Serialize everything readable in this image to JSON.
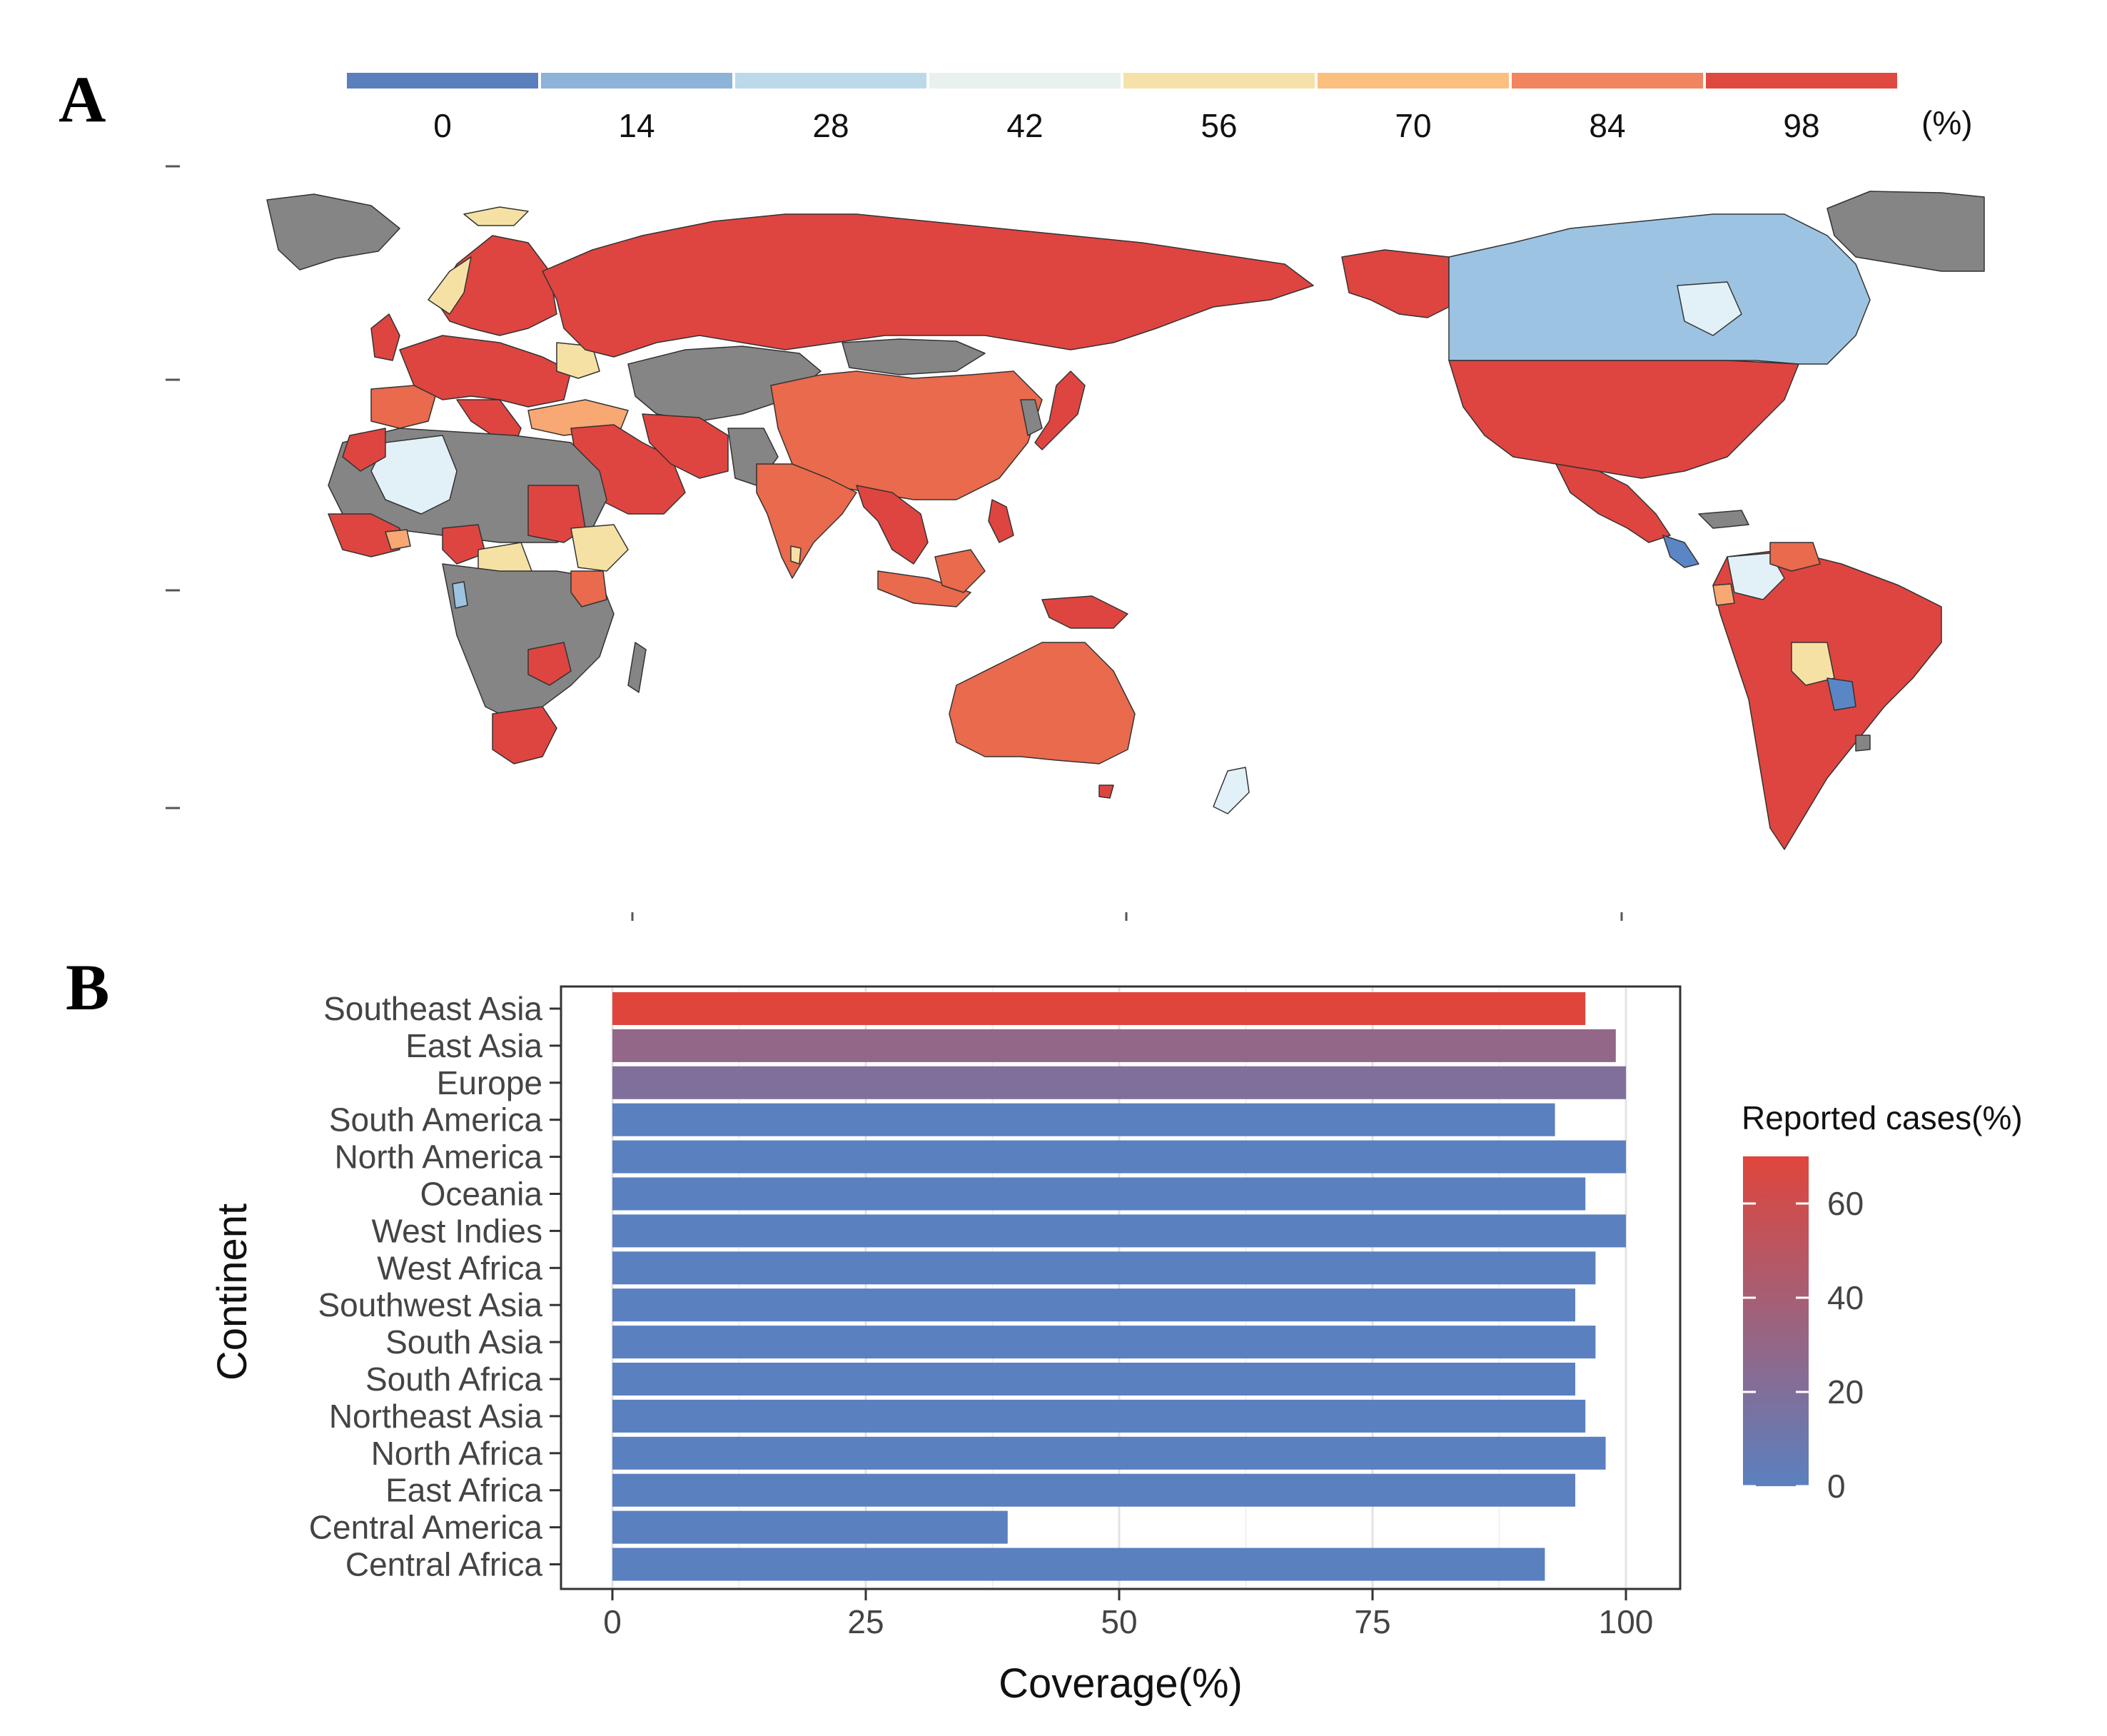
{
  "panels": {
    "a": "A",
    "b": "B"
  },
  "map_legend": {
    "unit": "(%)",
    "labels": [
      "0",
      "14",
      "28",
      "42",
      "56",
      "70",
      "84",
      "98"
    ],
    "colors": [
      "#5b7fbd",
      "#8db3d9",
      "#bcd9ea",
      "#e8f1ee",
      "#f6e2a8",
      "#fbbf80",
      "#f08560",
      "#de4a40"
    ]
  },
  "map_colors": {
    "high": "#de4540",
    "orange": "#e96a4c",
    "peach": "#f7a873",
    "yellow": "#f6e1a4",
    "light": "#e2f1f8",
    "lightblue": "#9cc4e2",
    "blue": "#5b86c5",
    "nodata": "#858585"
  },
  "chart_data": {
    "type": "bar",
    "orientation": "horizontal",
    "title": "",
    "xlabel": "Coverage(%)",
    "ylabel": "Continent",
    "xlim": [
      0,
      100
    ],
    "xticks": [
      "0",
      "25",
      "50",
      "75",
      "100"
    ],
    "categories": [
      "Southeast Asia",
      "East Asia",
      "Europe",
      "South America",
      "North America",
      "Oceania",
      "West Indies",
      "West Africa",
      "Southwest Asia",
      "South Asia",
      "South Africa",
      "Northeast Asia",
      "North Africa",
      "East Africa",
      "Central America",
      "Central Africa"
    ],
    "values": [
      96,
      99,
      100,
      93,
      100,
      96,
      100,
      97,
      95,
      97,
      95,
      96,
      98,
      95,
      39,
      92
    ],
    "color_values": [
      70,
      30,
      20,
      0,
      0,
      0,
      0,
      0,
      0,
      0,
      0,
      0,
      0,
      0,
      0,
      0
    ],
    "colorbar": {
      "title": "Reported cases(%)",
      "range": [
        0,
        70
      ],
      "ticks": [
        "0",
        "20",
        "40",
        "60"
      ],
      "low_color": "#5a80c0",
      "high_color": "#e0453c"
    }
  }
}
